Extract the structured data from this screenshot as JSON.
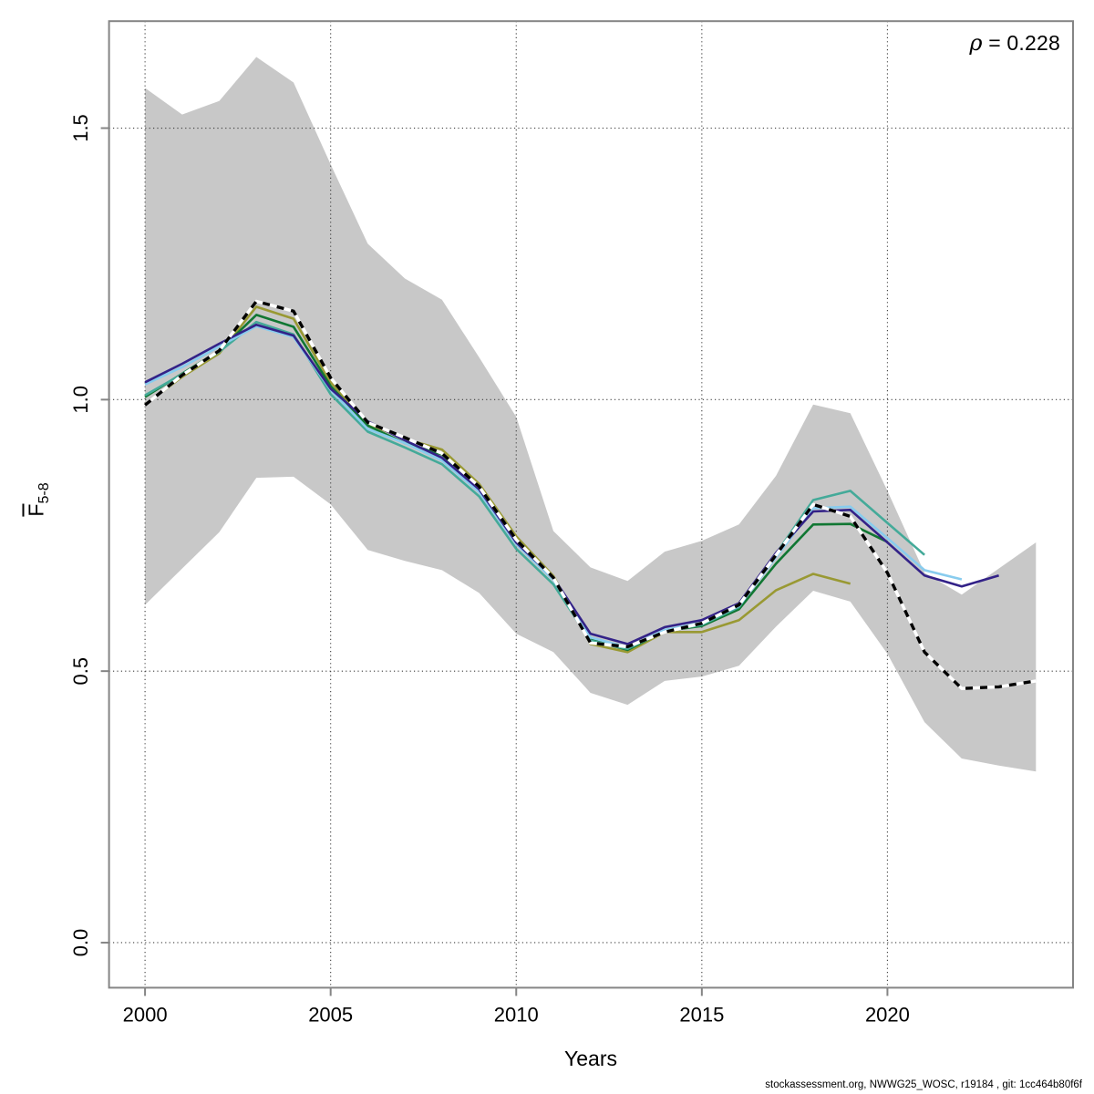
{
  "annotations": {
    "rho": {
      "symbol": "ρ",
      "rest": " = 0.228"
    },
    "footer": "stockassessment.org, NWWG25_WOSC, r19184 , git: 1cc464b80f6f"
  },
  "chart_data": {
    "type": "line",
    "title": "",
    "xlabel": "Years",
    "ylabel_base": "F",
    "ylabel_sub": "5-8",
    "xlim": [
      1999.03,
      2025.0
    ],
    "ylim": [
      -0.083,
      1.697
    ],
    "x_ticks": [
      2000,
      2005,
      2010,
      2015,
      2020
    ],
    "x_tick_labels": [
      "2000",
      "2005",
      "2010",
      "2015",
      "2020"
    ],
    "y_ticks": [
      0,
      0.5,
      1,
      1.5
    ],
    "y_tick_labels": [
      "0.0",
      "0.5",
      "1.0",
      "1.5"
    ],
    "grid": "dotted at every tick",
    "legend": "none",
    "colors": {
      "band_fill": "#c8c8c8",
      "grid": "#404040",
      "frame": "#858585",
      "base_line": "#000000",
      "base_dash_gap": "#ffffff"
    },
    "confidence_band": {
      "start_year": 2000,
      "upper": [
        1.574,
        1.525,
        1.55,
        1.631,
        1.584,
        1.433,
        1.287,
        1.223,
        1.184,
        1.078,
        0.968,
        0.758,
        0.691,
        0.666,
        0.72,
        0.74,
        0.77,
        0.86,
        0.991,
        0.975,
        0.832,
        0.681,
        0.641,
        0.689,
        0.737
      ],
      "lower": [
        0.622,
        0.689,
        0.756,
        0.856,
        0.858,
        0.807,
        0.723,
        0.703,
        0.686,
        0.644,
        0.569,
        0.535,
        0.46,
        0.438,
        0.482,
        0.49,
        0.51,
        0.582,
        0.648,
        0.628,
        0.532,
        0.406,
        0.339,
        0.326,
        0.315
      ]
    },
    "series": [
      {
        "name": "retro-peel-2019",
        "color": "#999933",
        "start_year": 2000,
        "values": [
          0.991,
          1.042,
          1.085,
          1.171,
          1.149,
          1.032,
          0.955,
          0.928,
          0.908,
          0.845,
          0.748,
          0.675,
          0.55,
          0.535,
          0.572,
          0.572,
          0.594,
          0.649,
          0.679,
          0.661
        ]
      },
      {
        "name": "retro-peel-2020",
        "color": "#117733",
        "start_year": 2000,
        "values": [
          1.005,
          1.048,
          1.09,
          1.156,
          1.134,
          1.025,
          0.952,
          0.92,
          0.899,
          0.835,
          0.742,
          0.67,
          0.558,
          0.539,
          0.574,
          0.583,
          0.614,
          0.698,
          0.77,
          0.771,
          0.738
        ]
      },
      {
        "name": "retro-peel-2021",
        "color": "#44AA99",
        "start_year": 2000,
        "values": [
          1.008,
          1.047,
          1.088,
          1.143,
          1.12,
          1.01,
          0.941,
          0.912,
          0.881,
          0.822,
          0.725,
          0.66,
          0.556,
          0.541,
          0.575,
          0.585,
          0.618,
          0.716,
          0.815,
          0.832,
          0.773,
          0.714
        ]
      },
      {
        "name": "retro-peel-2022",
        "color": "#88CCEE",
        "start_year": 2000,
        "values": [
          1.028,
          1.06,
          1.098,
          1.135,
          1.115,
          1.018,
          0.946,
          0.92,
          0.888,
          0.83,
          0.734,
          0.668,
          0.562,
          0.544,
          0.576,
          0.589,
          0.62,
          0.71,
          0.8,
          0.803,
          0.745,
          0.686,
          0.669
        ]
      },
      {
        "name": "retro-peel-2023",
        "color": "#332288",
        "start_year": 2000,
        "values": [
          1.032,
          1.066,
          1.103,
          1.138,
          1.118,
          1.02,
          0.96,
          0.925,
          0.893,
          0.835,
          0.737,
          0.672,
          0.569,
          0.55,
          0.581,
          0.594,
          0.625,
          0.718,
          0.794,
          0.797,
          0.737,
          0.676,
          0.656,
          0.676
        ]
      },
      {
        "name": "base-run",
        "color": "#000000",
        "style": "black-white-dashed",
        "start_year": 2000,
        "values": [
          0.99,
          1.045,
          1.09,
          1.181,
          1.163,
          1.04,
          0.958,
          0.93,
          0.901,
          0.84,
          0.742,
          0.672,
          0.552,
          0.545,
          0.572,
          0.588,
          0.622,
          0.714,
          0.807,
          0.785,
          0.681,
          0.535,
          0.468,
          0.471,
          0.482
        ]
      }
    ]
  }
}
